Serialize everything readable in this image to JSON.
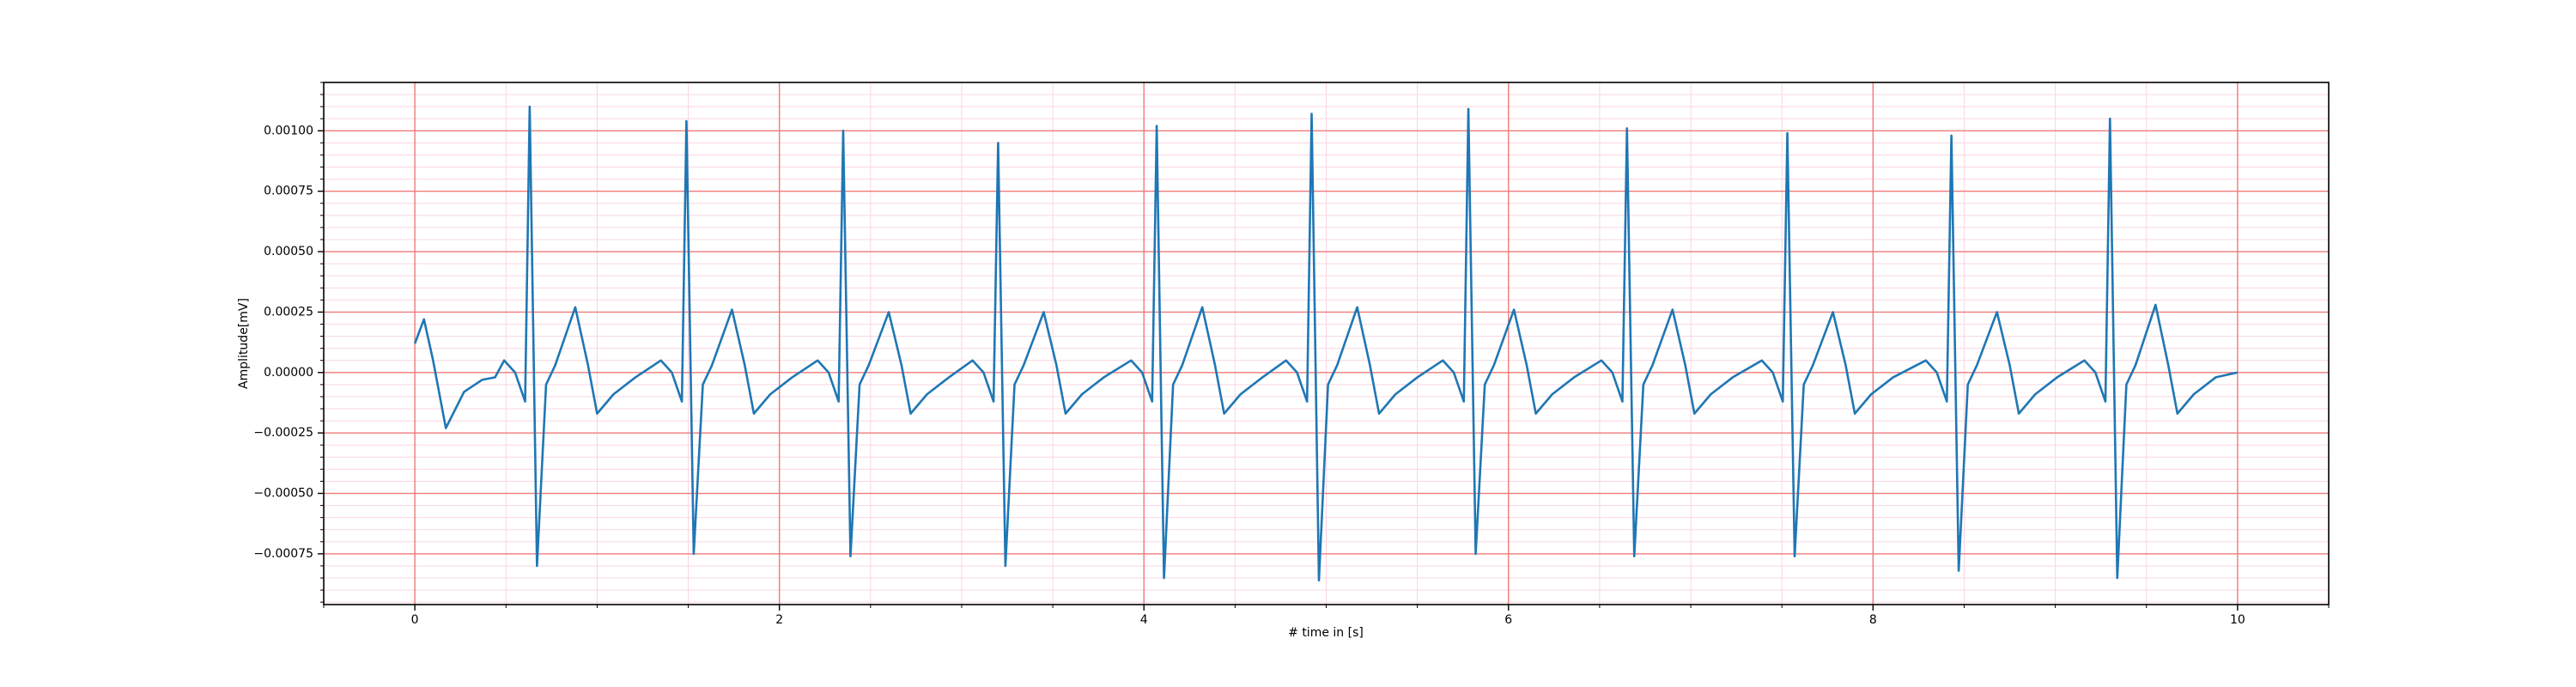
{
  "chart_data": {
    "type": "line",
    "xlabel": "# time in [s]",
    "ylabel": "Amplitude[mV]",
    "xlim": [
      -0.5,
      10.5
    ],
    "ylim": [
      -0.00096,
      0.0012
    ],
    "xticks": [
      0,
      2,
      4,
      6,
      8,
      10
    ],
    "yticks": [
      {
        "value": -0.00075,
        "label": "−0.00075"
      },
      {
        "value": -0.0005,
        "label": "−0.00050"
      },
      {
        "value": -0.00025,
        "label": "−0.00025"
      },
      {
        "value": 0,
        "label": "0.00000"
      },
      {
        "value": 0.00025,
        "label": "0.00025"
      },
      {
        "value": 0.0005,
        "label": "0.00050"
      },
      {
        "value": 0.00075,
        "label": "0.00075"
      },
      {
        "value": 0.001,
        "label": "0.00100"
      }
    ],
    "xminorticks": [
      -0.5,
      0.5,
      1,
      1.5,
      2.5,
      3,
      3.5,
      4.5,
      5,
      5.5,
      6.5,
      7,
      7.5,
      8.5,
      9,
      9.5,
      10.5
    ],
    "yminorticks": [
      -0.00095,
      -0.0009,
      -0.00085,
      -0.0008,
      -0.0007,
      -0.00065,
      -0.0006,
      -0.00055,
      -0.00045,
      -0.0004,
      -0.00035,
      -0.0003,
      -0.0002,
      -0.00015,
      -0.0001,
      -5e-05,
      5e-05,
      0.0001,
      0.00015,
      0.0002,
      0.0003,
      0.00035,
      0.0004,
      0.00045,
      0.00055,
      0.0006,
      0.00065,
      0.0007,
      0.0008,
      0.00085,
      0.0009,
      0.00095,
      0.00105,
      0.0011,
      0.00115,
      0.0012
    ],
    "grid": true,
    "grid_color": "#f07a7a",
    "minor_grid_color": "#fbd5e3",
    "x": [
      0,
      0.05,
      0.1,
      0.17,
      0.27,
      0.37,
      0.44,
      0.49,
      0.55,
      0.605,
      0.63,
      0.67,
      0.72,
      0.77,
      0.88,
      0.95,
      1.0,
      1.09,
      1.21,
      1.35,
      1.41,
      1.465,
      1.49,
      1.53,
      1.58,
      1.63,
      1.74,
      1.81,
      1.86,
      1.95,
      2.07,
      2.21,
      2.27,
      2.325,
      2.35,
      2.39,
      2.44,
      2.49,
      2.6,
      2.67,
      2.72,
      2.81,
      2.93,
      3.06,
      3.12,
      3.175,
      3.2,
      3.24,
      3.29,
      3.34,
      3.45,
      3.52,
      3.57,
      3.66,
      3.78,
      3.93,
      3.99,
      4.045,
      4.07,
      4.11,
      4.16,
      4.21,
      4.32,
      4.39,
      4.44,
      4.53,
      4.65,
      4.78,
      4.84,
      4.895,
      4.92,
      4.96,
      5.01,
      5.06,
      5.17,
      5.24,
      5.29,
      5.38,
      5.5,
      5.64,
      5.7,
      5.755,
      5.78,
      5.82,
      5.87,
      5.92,
      6.03,
      6.1,
      6.15,
      6.24,
      6.36,
      6.51,
      6.57,
      6.625,
      6.65,
      6.69,
      6.74,
      6.79,
      6.9,
      6.97,
      7.02,
      7.11,
      7.23,
      7.39,
      7.45,
      7.505,
      7.53,
      7.57,
      7.62,
      7.67,
      7.78,
      7.85,
      7.9,
      7.99,
      8.11,
      8.29,
      8.35,
      8.405,
      8.43,
      8.47,
      8.52,
      8.57,
      8.68,
      8.75,
      8.8,
      8.89,
      9.01,
      9.16,
      9.22,
      9.275,
      9.3,
      9.34,
      9.39,
      9.44,
      9.55,
      9.62,
      9.67,
      9.76,
      9.88,
      10.0
    ],
    "series": [
      {
        "color": "#1f77b4",
        "values": [
          0.00012,
          0.00022,
          5e-05,
          -0.00023,
          -8e-05,
          -3e-05,
          -2e-05,
          5e-05,
          0,
          -0.00012,
          0.0011,
          -0.0008,
          -5e-05,
          3e-05,
          0.00027,
          3e-05,
          -0.00017,
          -9e-05,
          -2e-05,
          5e-05,
          0,
          -0.00012,
          0.00104,
          -0.00075,
          -5e-05,
          3e-05,
          0.00026,
          3e-05,
          -0.00017,
          -9e-05,
          -2e-05,
          5e-05,
          0,
          -0.00012,
          0.001,
          -0.00076,
          -5e-05,
          3e-05,
          0.00025,
          3e-05,
          -0.00017,
          -9e-05,
          -2e-05,
          5e-05,
          0,
          -0.00012,
          0.00095,
          -0.0008,
          -5e-05,
          3e-05,
          0.00025,
          3e-05,
          -0.00017,
          -9e-05,
          -2e-05,
          5e-05,
          0,
          -0.00012,
          0.00102,
          -0.00085,
          -5e-05,
          3e-05,
          0.00027,
          3e-05,
          -0.00017,
          -9e-05,
          -2e-05,
          5e-05,
          0,
          -0.00012,
          0.00107,
          -0.00086,
          -5e-05,
          3e-05,
          0.00027,
          3e-05,
          -0.00017,
          -9e-05,
          -2e-05,
          5e-05,
          0,
          -0.00012,
          0.00109,
          -0.00075,
          -5e-05,
          3e-05,
          0.00026,
          3e-05,
          -0.00017,
          -9e-05,
          -2e-05,
          5e-05,
          0,
          -0.00012,
          0.00101,
          -0.00076,
          -5e-05,
          3e-05,
          0.00026,
          3e-05,
          -0.00017,
          -9e-05,
          -2e-05,
          5e-05,
          0,
          -0.00012,
          0.00099,
          -0.00076,
          -5e-05,
          3e-05,
          0.00025,
          3e-05,
          -0.00017,
          -9e-05,
          -2e-05,
          5e-05,
          0,
          -0.00012,
          0.00098,
          -0.00082,
          -5e-05,
          3e-05,
          0.00025,
          3e-05,
          -0.00017,
          -9e-05,
          -2e-05,
          5e-05,
          0,
          -0.00012,
          0.00105,
          -0.00085,
          -5e-05,
          3e-05,
          0.00028,
          3e-05,
          -0.00017,
          -9e-05,
          -2e-05,
          0
        ]
      }
    ]
  }
}
